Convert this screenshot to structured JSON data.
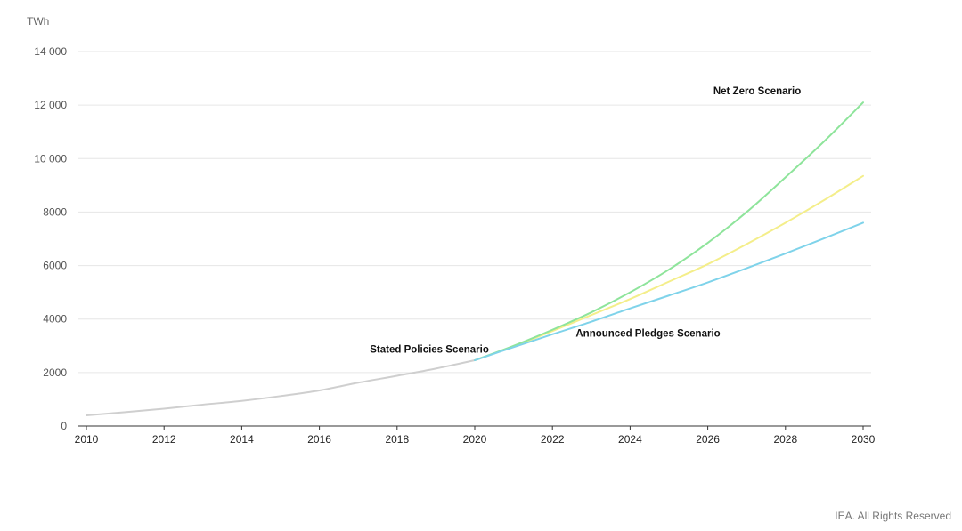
{
  "chart_data": {
    "type": "line",
    "unit_label": "TWh",
    "ylim": [
      0,
      14000
    ],
    "y_ticks": [
      0,
      2000,
      4000,
      6000,
      8000,
      10000,
      12000,
      14000
    ],
    "y_tick_labels": [
      "0",
      "2000",
      "4000",
      "6000",
      "8000",
      "10 000",
      "12 000",
      "14 000"
    ],
    "xlim": [
      2010,
      2030
    ],
    "x_ticks": [
      2010,
      2012,
      2014,
      2016,
      2018,
      2020,
      2022,
      2024,
      2026,
      2028,
      2030
    ],
    "x_tick_labels": [
      "2010",
      "2012",
      "2014",
      "2016",
      "2018",
      "2020",
      "2022",
      "2024",
      "2026",
      "2028",
      "2030"
    ],
    "grid": true,
    "series": [
      {
        "key": "historical",
        "color": "#cfcfcf",
        "x": [
          2010,
          2011,
          2012,
          2013,
          2014,
          2015,
          2016,
          2017,
          2018,
          2019,
          2020
        ],
        "values": [
          400,
          520,
          650,
          800,
          940,
          1120,
          1330,
          1620,
          1880,
          2150,
          2460
        ]
      },
      {
        "key": "announced",
        "color": "#f4ee8a",
        "x": [
          2020,
          2021,
          2022,
          2023,
          2024,
          2025,
          2026,
          2027,
          2028,
          2029,
          2030
        ],
        "values": [
          2460,
          2980,
          3550,
          4150,
          4750,
          5400,
          6050,
          6800,
          7600,
          8450,
          9350
        ]
      },
      {
        "key": "net_zero",
        "name": "Net Zero Scenario",
        "color": "#8ee49b",
        "x": [
          2020,
          2021,
          2022,
          2023,
          2024,
          2025,
          2026,
          2027,
          2028,
          2029,
          2030
        ],
        "values": [
          2460,
          3000,
          3600,
          4250,
          5000,
          5850,
          6850,
          8000,
          9300,
          10650,
          12100
        ]
      },
      {
        "key": "stated",
        "color": "#7fd3ea",
        "x": [
          2020,
          2021,
          2022,
          2023,
          2024,
          2025,
          2026,
          2027,
          2028,
          2029,
          2030
        ],
        "values": [
          2460,
          2950,
          3430,
          3900,
          4400,
          4880,
          5370,
          5900,
          6450,
          7020,
          7600
        ]
      }
    ],
    "annotations": [
      {
        "text": "Net Zero Scenario",
        "x": 2028.4,
        "y": 12400,
        "anchor": "end"
      },
      {
        "text": "Stated Policies Scenario",
        "x": 2017.3,
        "y": 2750,
        "anchor": "start"
      },
      {
        "text": "Announced Pledges Scenario",
        "x": 2022.6,
        "y": 3350,
        "anchor": "start"
      }
    ]
  },
  "credit": "IEA. All Rights Reserved"
}
